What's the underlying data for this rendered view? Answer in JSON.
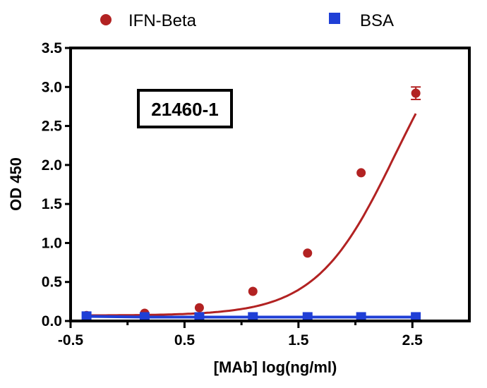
{
  "chart_data": {
    "type": "scatter",
    "title": "",
    "xlabel": "[MAb] log(ng/ml)",
    "ylabel": "OD 450",
    "xlim": [
      -0.5,
      3.0
    ],
    "ylim": [
      0.0,
      3.5
    ],
    "xticks": [
      "-0.5",
      "0.5",
      "1.5",
      "2.5"
    ],
    "xtick_values": [
      -0.5,
      0.5,
      1.5,
      2.5
    ],
    "yticks": [
      "0.0",
      "0.5",
      "1.0",
      "1.5",
      "2.0",
      "2.5",
      "3.0",
      "3.5"
    ],
    "ytick_values": [
      0.0,
      0.5,
      1.0,
      1.5,
      2.0,
      2.5,
      3.0,
      3.5
    ],
    "minor_xtick_values": [
      0.0,
      1.0,
      2.0
    ],
    "grid": false,
    "legend_position": "top",
    "annotation": "21460-1",
    "series": [
      {
        "name": "IFN-Beta",
        "color": "#b22222",
        "marker": "circle",
        "fit": "sigmoid",
        "x": [
          -0.36,
          0.15,
          0.63,
          1.1,
          1.58,
          2.05,
          2.53
        ],
        "y": [
          0.07,
          0.1,
          0.17,
          0.38,
          0.87,
          1.9,
          2.92
        ],
        "error": [
          0,
          0,
          0,
          0,
          0,
          0,
          0.08
        ]
      },
      {
        "name": "BSA",
        "color": "#1f3fd6",
        "marker": "square",
        "fit": "line",
        "x": [
          -0.36,
          0.15,
          0.63,
          1.1,
          1.58,
          2.05,
          2.53
        ],
        "y": [
          0.06,
          0.05,
          0.05,
          0.05,
          0.05,
          0.05,
          0.05
        ]
      }
    ]
  }
}
